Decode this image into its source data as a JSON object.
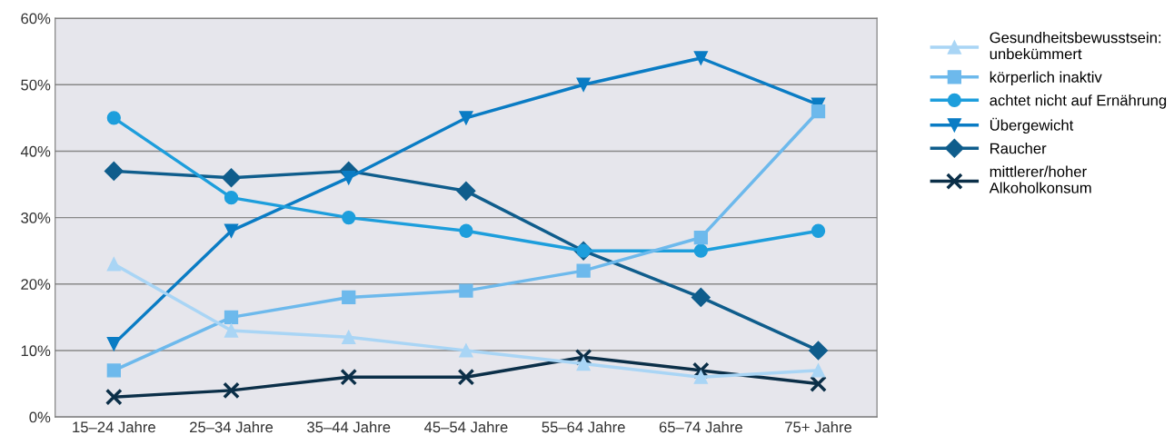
{
  "chart_data": {
    "type": "line",
    "categories": [
      "15–24 Jahre",
      "25–34 Jahre",
      "35–44 Jahre",
      "45–54 Jahre",
      "55–64 Jahre",
      "65–74 Jahre",
      "75+ Jahre"
    ],
    "series": [
      {
        "name": "Gesundheitsbewusstsein:\nunbekümmert",
        "color": "#a9d5f5",
        "marker": "triangle",
        "values": [
          23,
          13,
          12,
          10,
          8,
          6,
          7
        ]
      },
      {
        "name": "körperlich inaktiv",
        "color": "#6db9ec",
        "marker": "square",
        "values": [
          7,
          15,
          18,
          19,
          22,
          27,
          46
        ]
      },
      {
        "name": "achtet nicht auf Ernährung",
        "color": "#1d9edc",
        "marker": "circle",
        "values": [
          45,
          33,
          30,
          28,
          25,
          25,
          28
        ]
      },
      {
        "name": "Übergewicht",
        "color": "#0a7cc4",
        "marker": "triangle_down",
        "values": [
          11,
          28,
          36,
          45,
          50,
          54,
          47
        ]
      },
      {
        "name": "Raucher",
        "color": "#0f5d8c",
        "marker": "diamond",
        "values": [
          37,
          36,
          37,
          34,
          25,
          18,
          10
        ]
      },
      {
        "name": "mittlerer/hoher\nAlkoholkonsum",
        "color": "#0b2f48",
        "marker": "cross",
        "values": [
          3,
          4,
          6,
          6,
          9,
          7,
          5
        ]
      }
    ],
    "ylim": [
      0,
      60
    ],
    "yticks": [
      {
        "value": 0,
        "label": "0%"
      },
      {
        "value": 10,
        "label": "10%"
      },
      {
        "value": 20,
        "label": "20%"
      },
      {
        "value": 30,
        "label": "30%"
      },
      {
        "value": 40,
        "label": "40%"
      },
      {
        "value": 50,
        "label": "50%"
      },
      {
        "value": 60,
        "label": "60%"
      }
    ],
    "grid": "y",
    "legend": "top right"
  }
}
